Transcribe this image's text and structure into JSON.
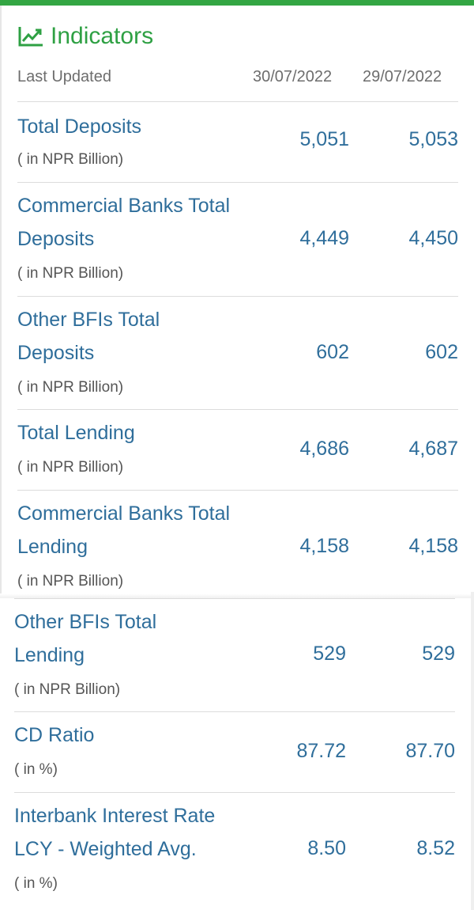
{
  "header": {
    "title": "Indicators",
    "icon": "trend-chart-icon",
    "accent": "#2ea043"
  },
  "columns": {
    "label": "Last Updated",
    "date1": "30/07/2022",
    "date2": "29/07/2022"
  },
  "rows": [
    {
      "label1": "Total Deposits",
      "label2": "",
      "unit": "( in NPR Billion)",
      "v1": "5,051",
      "v2": "5,053"
    },
    {
      "label1": "Commercial Banks Total",
      "label2": "Deposits",
      "unit": "( in NPR Billion)",
      "v1": "4,449",
      "v2": "4,450"
    },
    {
      "label1": "Other BFIs Total",
      "label2": "Deposits",
      "unit": "( in NPR Billion)",
      "v1": "602",
      "v2": "602"
    },
    {
      "label1": "Total Lending",
      "label2": "",
      "unit": "( in NPR Billion)",
      "v1": "4,686",
      "v2": "4,687"
    },
    {
      "label1": "Commercial Banks Total",
      "label2": "Lending",
      "unit": "( in NPR Billion)",
      "v1": "4,158",
      "v2": "4,158"
    },
    {
      "label1": "Other BFIs Total",
      "label2": "Lending",
      "unit": "( in NPR Billion)",
      "v1": "529",
      "v2": "529"
    },
    {
      "label1": "CD Ratio",
      "label2": "",
      "unit": "( in %)",
      "v1": "87.72",
      "v2": "87.70"
    },
    {
      "label1": "Interbank Interest Rate",
      "label2": "LCY - Weighted Avg.",
      "unit": "( in %)",
      "v1": "8.50",
      "v2": "8.52"
    }
  ]
}
